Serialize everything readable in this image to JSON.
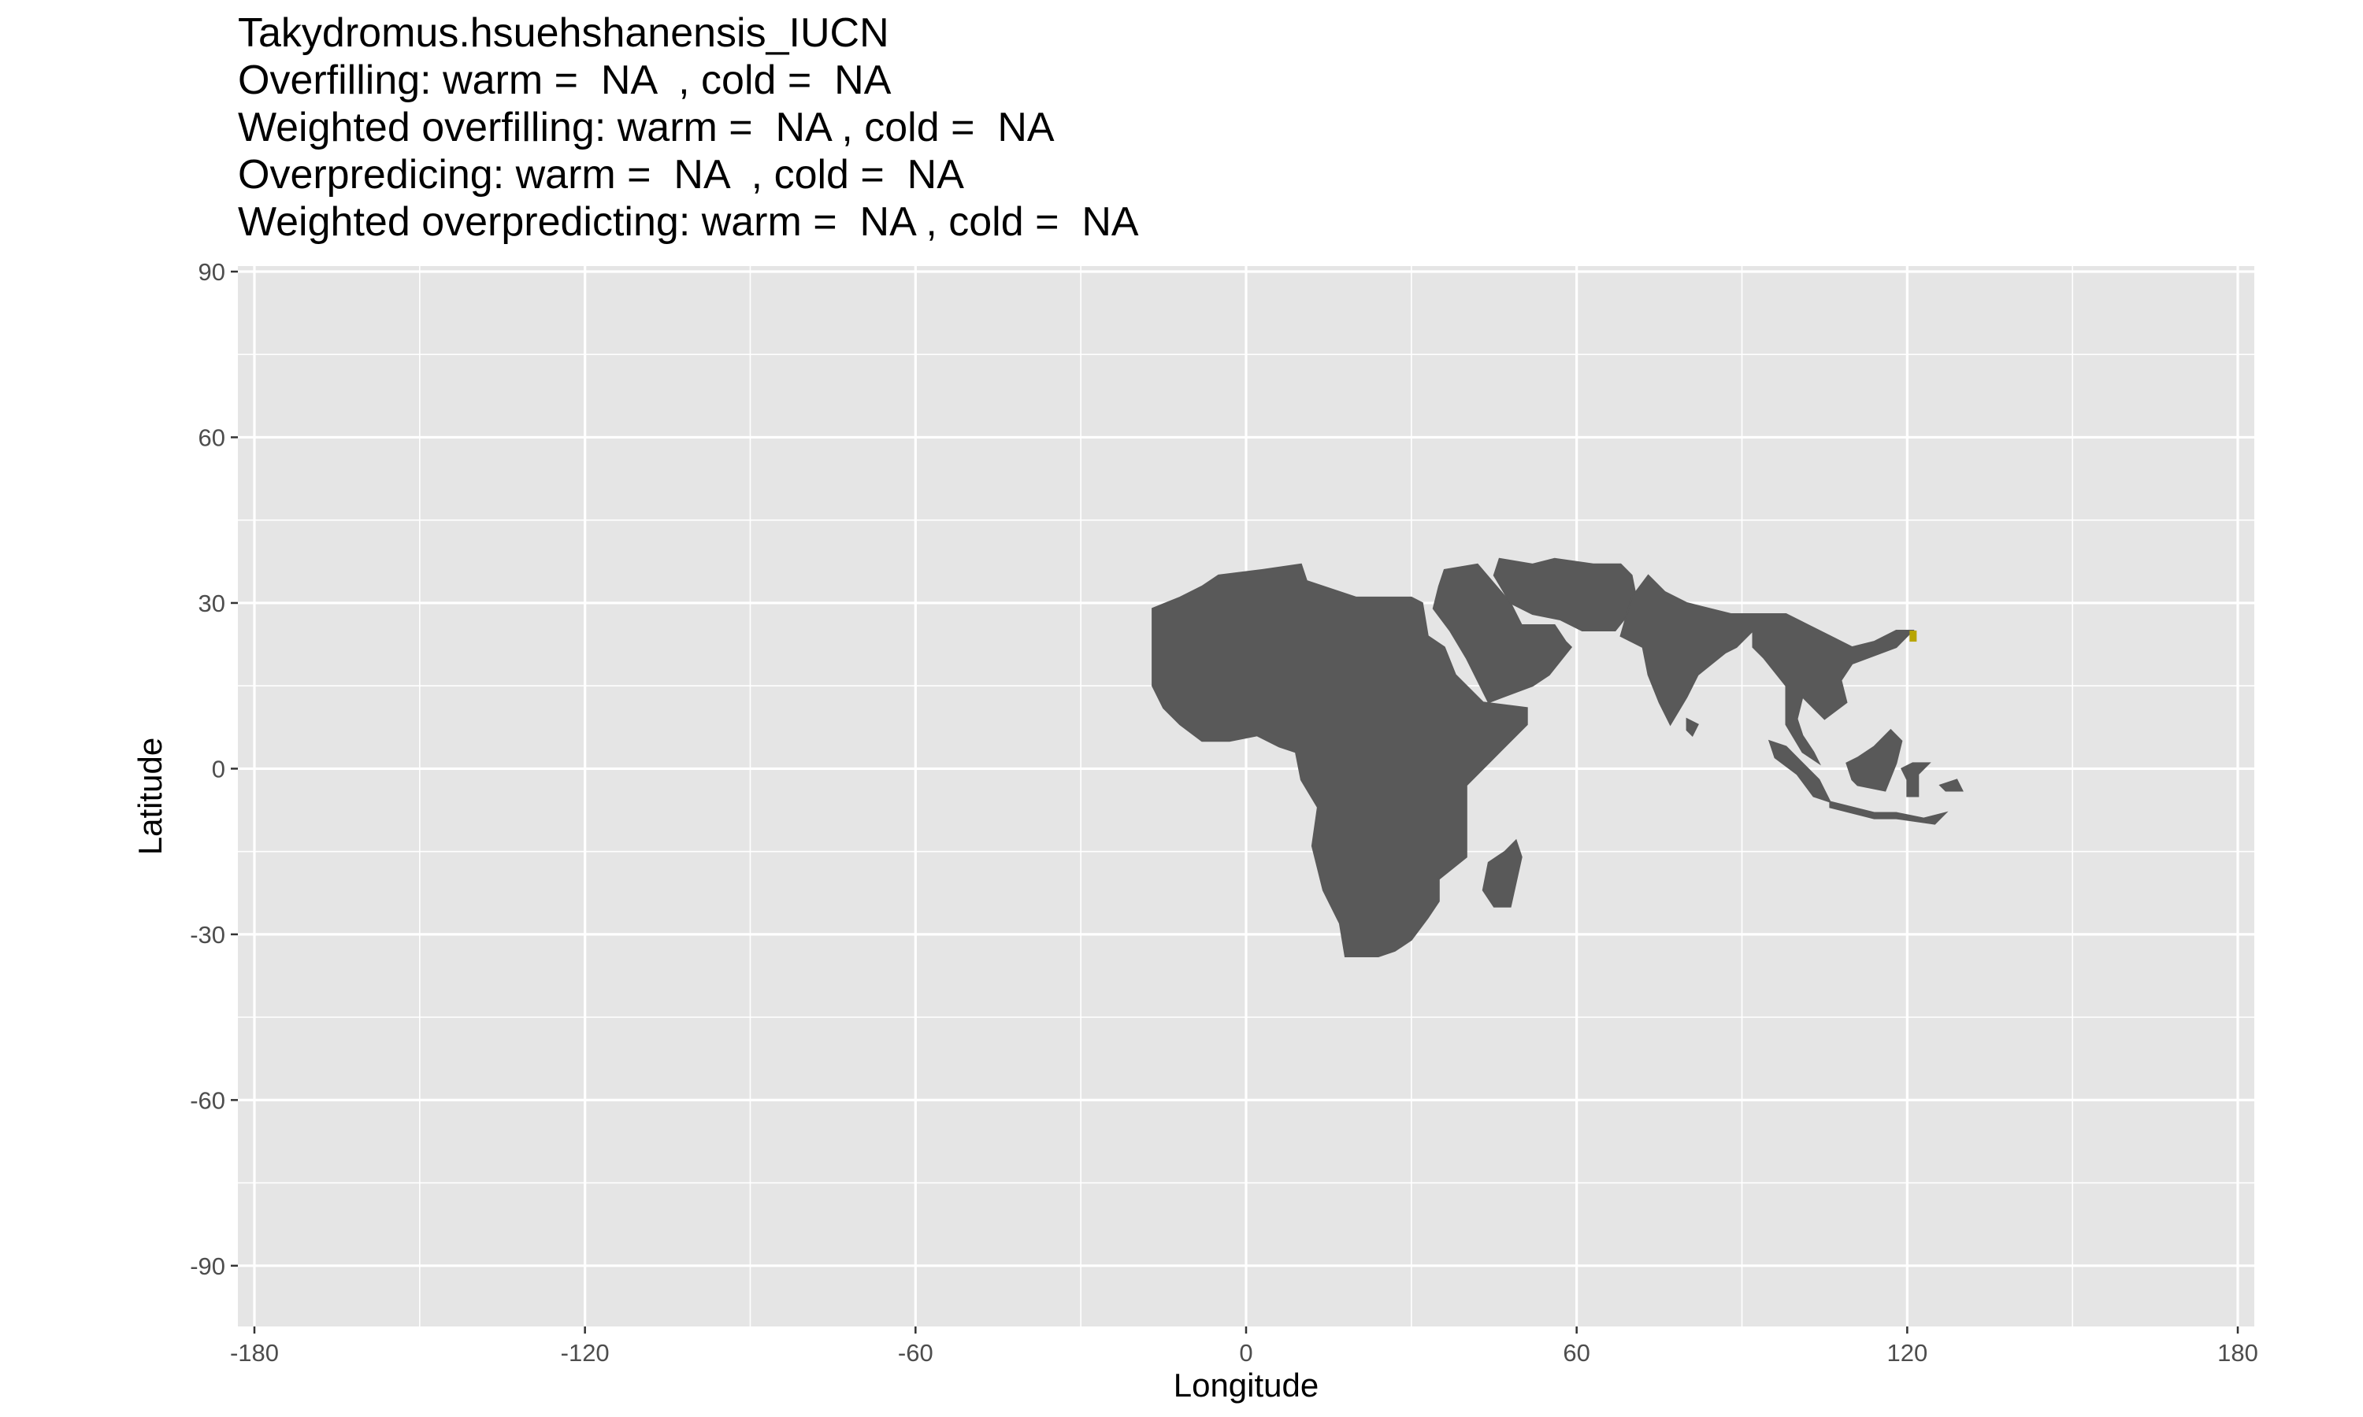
{
  "chart_data": {
    "type": "heatmap",
    "title_lines": [
      "Takydromus.hsuehshanensis_IUCN",
      "Overfilling: warm =  NA  , cold =  NA",
      "Weighted overfilling: warm =  NA , cold =  NA",
      "Overpredicing: warm =  NA  , cold =  NA",
      "Weighted overpredicting: warm =  NA , cold =  NA"
    ],
    "xlabel": "Longitude",
    "ylabel": "Latitude",
    "xlim": [
      -183,
      183
    ],
    "ylim": [
      -101,
      91
    ],
    "x_ticks": [
      -180,
      -120,
      -60,
      0,
      60,
      120,
      180
    ],
    "y_ticks": [
      90,
      60,
      30,
      0,
      -30,
      -60,
      -90
    ],
    "grid": true,
    "panel_background": "#e5e5e5",
    "grid_color": "#ffffff",
    "land_color": "#595959",
    "highlight_color": "#b8a500",
    "regions": [
      {
        "name": "africa-mainland",
        "points": [
          [
            -17,
            29
          ],
          [
            -12,
            31
          ],
          [
            -8,
            33
          ],
          [
            -5,
            35
          ],
          [
            3,
            36
          ],
          [
            10,
            37
          ],
          [
            11,
            34
          ],
          [
            20,
            31
          ],
          [
            30,
            31
          ],
          [
            32,
            30
          ],
          [
            33,
            24
          ],
          [
            36,
            22
          ],
          [
            38,
            17
          ],
          [
            43,
            12
          ],
          [
            51,
            11
          ],
          [
            51,
            8
          ],
          [
            44,
            1
          ],
          [
            40,
            -3
          ],
          [
            40,
            -11
          ],
          [
            40,
            -16
          ],
          [
            35,
            -20
          ],
          [
            35,
            -24
          ],
          [
            33,
            -27
          ],
          [
            30,
            -31
          ],
          [
            27,
            -33
          ],
          [
            24,
            -34
          ],
          [
            18,
            -34
          ],
          [
            17,
            -28
          ],
          [
            14,
            -22
          ],
          [
            12,
            -14
          ],
          [
            13,
            -7
          ],
          [
            10,
            -2
          ],
          [
            9,
            3
          ],
          [
            6,
            4
          ],
          [
            2,
            6
          ],
          [
            -3,
            5
          ],
          [
            -8,
            5
          ],
          [
            -12,
            8
          ],
          [
            -15,
            11
          ],
          [
            -17,
            15
          ],
          [
            -17,
            20
          ]
        ]
      },
      {
        "name": "madagascar",
        "points": [
          [
            49,
            -13
          ],
          [
            50,
            -16
          ],
          [
            48,
            -25
          ],
          [
            45,
            -25
          ],
          [
            43,
            -22
          ],
          [
            44,
            -17
          ],
          [
            47,
            -15
          ]
        ]
      },
      {
        "name": "arabia-middle-east",
        "points": [
          [
            34,
            29
          ],
          [
            35,
            33
          ],
          [
            36,
            36
          ],
          [
            42,
            37
          ],
          [
            48,
            30
          ],
          [
            50,
            26
          ],
          [
            56,
            26
          ],
          [
            58,
            23
          ],
          [
            59,
            22
          ],
          [
            55,
            17
          ],
          [
            52,
            15
          ],
          [
            44,
            12
          ],
          [
            43,
            14
          ],
          [
            40,
            20
          ],
          [
            37,
            25
          ]
        ]
      },
      {
        "name": "iran-central-asia",
        "points": [
          [
            46,
            38
          ],
          [
            52,
            37
          ],
          [
            56,
            38
          ],
          [
            63,
            37
          ],
          [
            68,
            37
          ],
          [
            70,
            35
          ],
          [
            71,
            30
          ],
          [
            67,
            25
          ],
          [
            61,
            25
          ],
          [
            57,
            27
          ],
          [
            52,
            28
          ],
          [
            48,
            30
          ],
          [
            45,
            35
          ]
        ]
      },
      {
        "name": "indian-subcontinent",
        "points": [
          [
            68,
            24
          ],
          [
            72,
            22
          ],
          [
            73,
            17
          ],
          [
            75,
            12
          ],
          [
            77,
            8
          ],
          [
            80,
            13
          ],
          [
            82,
            17
          ],
          [
            87,
            21
          ],
          [
            89,
            22
          ],
          [
            92,
            25
          ],
          [
            96,
            28
          ],
          [
            88,
            28
          ],
          [
            80,
            30
          ],
          [
            76,
            32
          ],
          [
            73,
            35
          ],
          [
            70,
            31
          ]
        ]
      },
      {
        "name": "sri-lanka",
        "points": [
          [
            80,
            9
          ],
          [
            82,
            8
          ],
          [
            81,
            6
          ],
          [
            80,
            7
          ]
        ]
      },
      {
        "name": "mainland-southeast-asia",
        "points": [
          [
            92,
            28
          ],
          [
            98,
            28
          ],
          [
            102,
            26
          ],
          [
            106,
            24
          ],
          [
            110,
            22
          ],
          [
            114,
            23
          ],
          [
            118,
            25
          ],
          [
            121,
            25
          ],
          [
            118,
            22
          ],
          [
            110,
            19
          ],
          [
            108,
            16
          ],
          [
            109,
            12
          ],
          [
            105,
            9
          ],
          [
            103,
            11
          ],
          [
            101,
            13
          ],
          [
            100,
            9
          ],
          [
            101,
            6
          ],
          [
            103,
            3
          ],
          [
            104,
            1
          ],
          [
            101,
            3
          ],
          [
            98,
            8
          ],
          [
            98,
            15
          ],
          [
            94,
            20
          ],
          [
            92,
            22
          ]
        ]
      },
      {
        "name": "sumatra",
        "points": [
          [
            95,
            5
          ],
          [
            98,
            4
          ],
          [
            104,
            -2
          ],
          [
            106,
            -6
          ],
          [
            103,
            -5
          ],
          [
            100,
            -1
          ],
          [
            96,
            2
          ]
        ]
      },
      {
        "name": "borneo",
        "points": [
          [
            109,
            1
          ],
          [
            111,
            2
          ],
          [
            114,
            4
          ],
          [
            117,
            7
          ],
          [
            119,
            5
          ],
          [
            118,
            1
          ],
          [
            116,
            -4
          ],
          [
            111,
            -3
          ],
          [
            110,
            -2
          ]
        ]
      },
      {
        "name": "sulawesi",
        "points": [
          [
            119,
            0
          ],
          [
            121,
            1
          ],
          [
            124,
            1
          ],
          [
            122,
            -1
          ],
          [
            122,
            -5
          ],
          [
            120,
            -5
          ],
          [
            120,
            -2
          ]
        ]
      },
      {
        "name": "java-lesser-sunda",
        "points": [
          [
            106,
            -6
          ],
          [
            110,
            -7
          ],
          [
            114,
            -8
          ],
          [
            118,
            -8
          ],
          [
            123,
            -9
          ],
          [
            127,
            -8
          ],
          [
            125,
            -10
          ],
          [
            118,
            -9
          ],
          [
            114,
            -9
          ],
          [
            106,
            -7
          ]
        ]
      },
      {
        "name": "new-guinea-edge",
        "points": [
          [
            126,
            -3
          ],
          [
            129,
            -2
          ],
          [
            130,
            -4
          ],
          [
            127,
            -4
          ]
        ]
      }
    ],
    "highlight_cells": [
      [
        121,
        24
      ]
    ]
  }
}
